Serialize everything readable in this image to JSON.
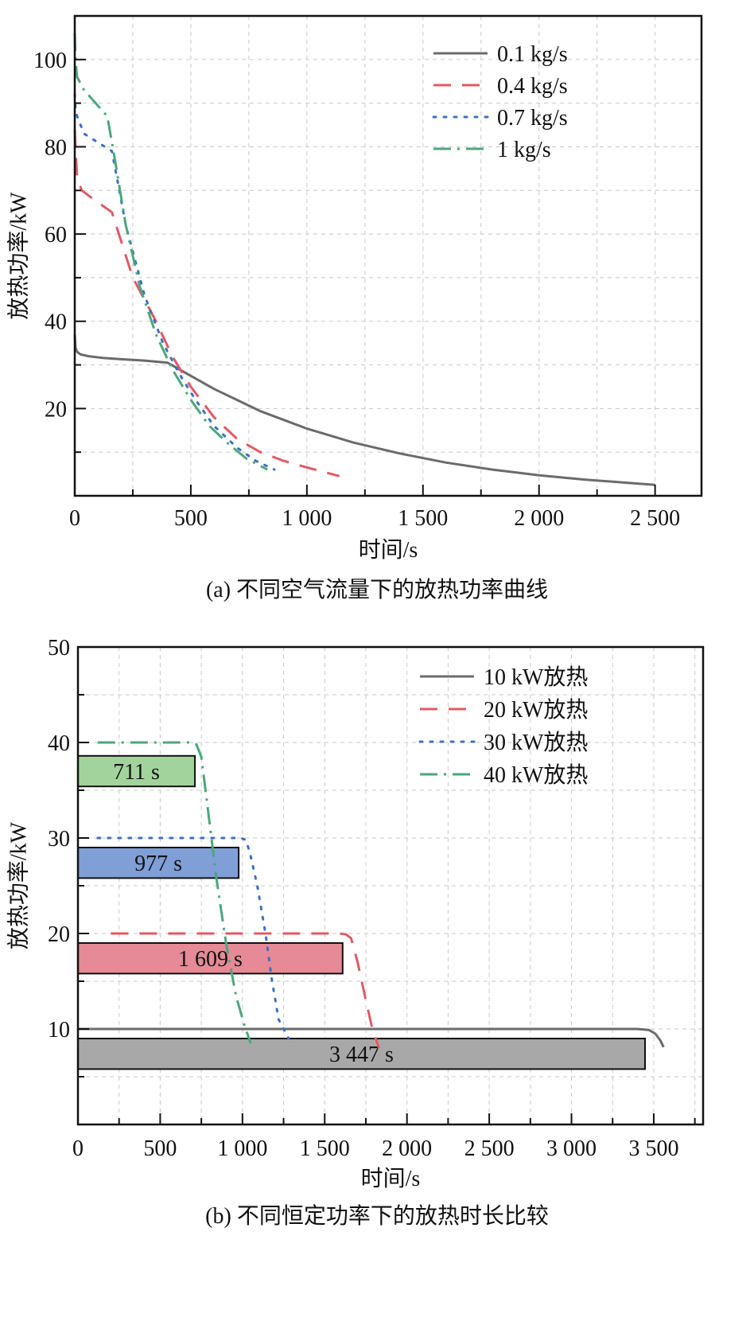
{
  "chart_data": [
    {
      "type": "line",
      "caption": "(a) 不同空气流量下的放热功率曲线",
      "xlabel": "时间/s",
      "ylabel": "放热功率/kW",
      "xlim": [
        0,
        2700
      ],
      "ylim": [
        0,
        110
      ],
      "xticks": [
        0,
        500,
        1000,
        1500,
        2000,
        2500
      ],
      "xtick_labels": [
        "0",
        "500",
        "1 000",
        "1 500",
        "2 000",
        "2 500"
      ],
      "xminor": [
        250,
        750,
        1250,
        1750,
        2250
      ],
      "yticks": [
        20,
        40,
        60,
        80,
        100
      ],
      "ytick_labels": [
        "20",
        "40",
        "60",
        "80",
        "100"
      ],
      "yminor": [
        10,
        30,
        50,
        70,
        90
      ],
      "grid": true,
      "legend_position": "top-right",
      "series": [
        {
          "name": "0.1 kg/s",
          "color": "#6b6b6b",
          "dash": "solid",
          "x": [
            0,
            3,
            10,
            25,
            60,
            120,
            200,
            300,
            400,
            500,
            600,
            800,
            1000,
            1200,
            1400,
            1600,
            1800,
            2000,
            2200,
            2400,
            2500
          ],
          "y": [
            37,
            34,
            33,
            32.4,
            32,
            31.6,
            31.3,
            31,
            30.5,
            27.5,
            24.5,
            19.4,
            15.4,
            12.2,
            9.7,
            7.6,
            6,
            4.7,
            3.7,
            2.9,
            2.5
          ]
        },
        {
          "name": "0.4 kg/s",
          "color": "#e05a66",
          "dash": "dashed",
          "x": [
            0,
            3,
            10,
            30,
            80,
            160,
            250,
            350,
            420,
            500,
            600,
            700,
            800,
            900,
            1000,
            1140
          ],
          "y": [
            84,
            80,
            73,
            70,
            68,
            65,
            50,
            40,
            32,
            25,
            18,
            13,
            10,
            8,
            6.5,
            4.5
          ]
        },
        {
          "name": "0.7 kg/s",
          "color": "#3f6fc4",
          "dash": "dotted",
          "x": [
            0,
            3,
            10,
            40,
            100,
            160,
            220,
            300,
            380,
            450,
            520,
            600,
            700,
            780,
            860
          ],
          "y": [
            92,
            89,
            87,
            83,
            81,
            79,
            62,
            46,
            35,
            28,
            22,
            16,
            11,
            8,
            6
          ]
        },
        {
          "name": "1 kg/s",
          "color": "#4ea67c",
          "dash": "dashdot",
          "x": [
            0,
            3,
            10,
            40,
            90,
            140,
            170,
            220,
            280,
            350,
            420,
            500,
            580,
            660,
            740,
            830
          ],
          "y": [
            106,
            100,
            96,
            93,
            90,
            87,
            78,
            62,
            48,
            37,
            29,
            22,
            16,
            12,
            8.5,
            6
          ]
        }
      ]
    },
    {
      "type": "line",
      "caption": "(b) 不同恒定功率下的放热时长比较",
      "xlabel": "时间/s",
      "ylabel": "放热功率/kW",
      "xlim": [
        0,
        3800
      ],
      "ylim": [
        0,
        50
      ],
      "xticks": [
        0,
        500,
        1000,
        1500,
        2000,
        2500,
        3000,
        3500
      ],
      "xtick_labels": [
        "0",
        "500",
        "1 000",
        "1 500",
        "2 000",
        "2 500",
        "3 000",
        "3 500"
      ],
      "xminor": [
        250,
        750,
        1250,
        1750,
        2250,
        2750,
        3250,
        3750
      ],
      "yticks": [
        10,
        20,
        30,
        40,
        50
      ],
      "ytick_labels": [
        "10",
        "20",
        "30",
        "40",
        "50"
      ],
      "yminor": [
        5,
        15,
        25,
        35,
        45
      ],
      "grid": true,
      "legend_position": "top-right",
      "series": [
        {
          "name": "10 kW放热",
          "color": "#6b6b6b",
          "dash": "solid",
          "x": [
            0,
            3400,
            3470,
            3510,
            3540,
            3560
          ],
          "y": [
            10,
            10,
            9.9,
            9.5,
            8.8,
            8.1
          ]
        },
        {
          "name": "20 kW放热",
          "color": "#e05a66",
          "dash": "dashed",
          "x": [
            200,
            1590,
            1630,
            1660,
            1700,
            1750,
            1790,
            1830
          ],
          "y": [
            20,
            20,
            19.9,
            19.5,
            17,
            13,
            10,
            8
          ]
        },
        {
          "name": "30 kW放热",
          "color": "#3f6fc4",
          "dash": "dotted",
          "x": [
            120,
            990,
            1020,
            1045,
            1090,
            1140,
            1180,
            1220,
            1280
          ],
          "y": [
            30,
            30,
            29.8,
            28.5,
            25,
            20,
            15,
            11,
            9
          ]
        },
        {
          "name": "40 kW放热",
          "color": "#4ea67c",
          "dash": "dashdot",
          "x": [
            120,
            690,
            720,
            750,
            790,
            840,
            900,
            960,
            1010,
            1050
          ],
          "y": [
            40,
            40,
            39.8,
            38.5,
            33,
            26,
            19,
            13.5,
            10.5,
            8.5
          ]
        }
      ],
      "bars": [
        {
          "label": "711 s",
          "value": 711,
          "y_low": 35.4,
          "y_high": 38.6,
          "color": "#a3d39c"
        },
        {
          "label": "977 s",
          "value": 977,
          "y_low": 25.8,
          "y_high": 29.0,
          "color": "#7f9fd6"
        },
        {
          "label": "1 609 s",
          "value": 1609,
          "y_low": 15.8,
          "y_high": 19.0,
          "color": "#e58a96"
        },
        {
          "label": "3 447 s",
          "value": 3447,
          "y_low": 5.8,
          "y_high": 9.0,
          "color": "#a8a8a8"
        }
      ]
    }
  ]
}
